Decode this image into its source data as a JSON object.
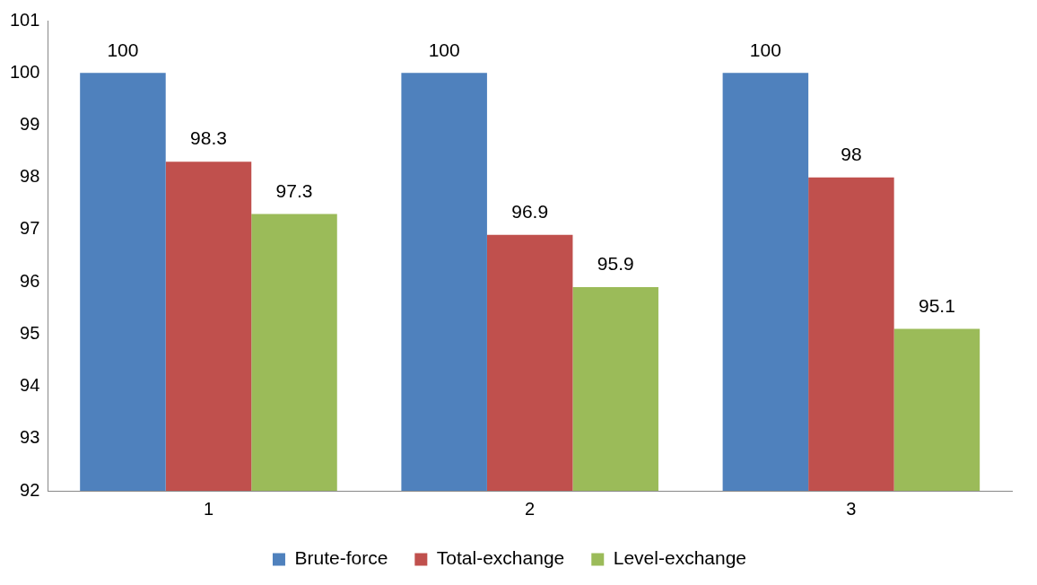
{
  "chart_data": {
    "type": "bar",
    "categories": [
      "1",
      "2",
      "3"
    ],
    "series": [
      {
        "name": "Brute-force",
        "color": "#4f81bd",
        "values": [
          100,
          100,
          100
        ]
      },
      {
        "name": "Total-exchange",
        "color": "#c0504d",
        "values": [
          98.3,
          96.9,
          98
        ]
      },
      {
        "name": "Level-exchange",
        "color": "#9bbb59",
        "values": [
          97.3,
          95.9,
          95.1
        ]
      }
    ],
    "ylim": [
      92,
      101
    ],
    "yticks": [
      92,
      93,
      94,
      95,
      96,
      97,
      98,
      99,
      100,
      101
    ],
    "grid": false,
    "legend": "bottom",
    "data_labels": true
  }
}
